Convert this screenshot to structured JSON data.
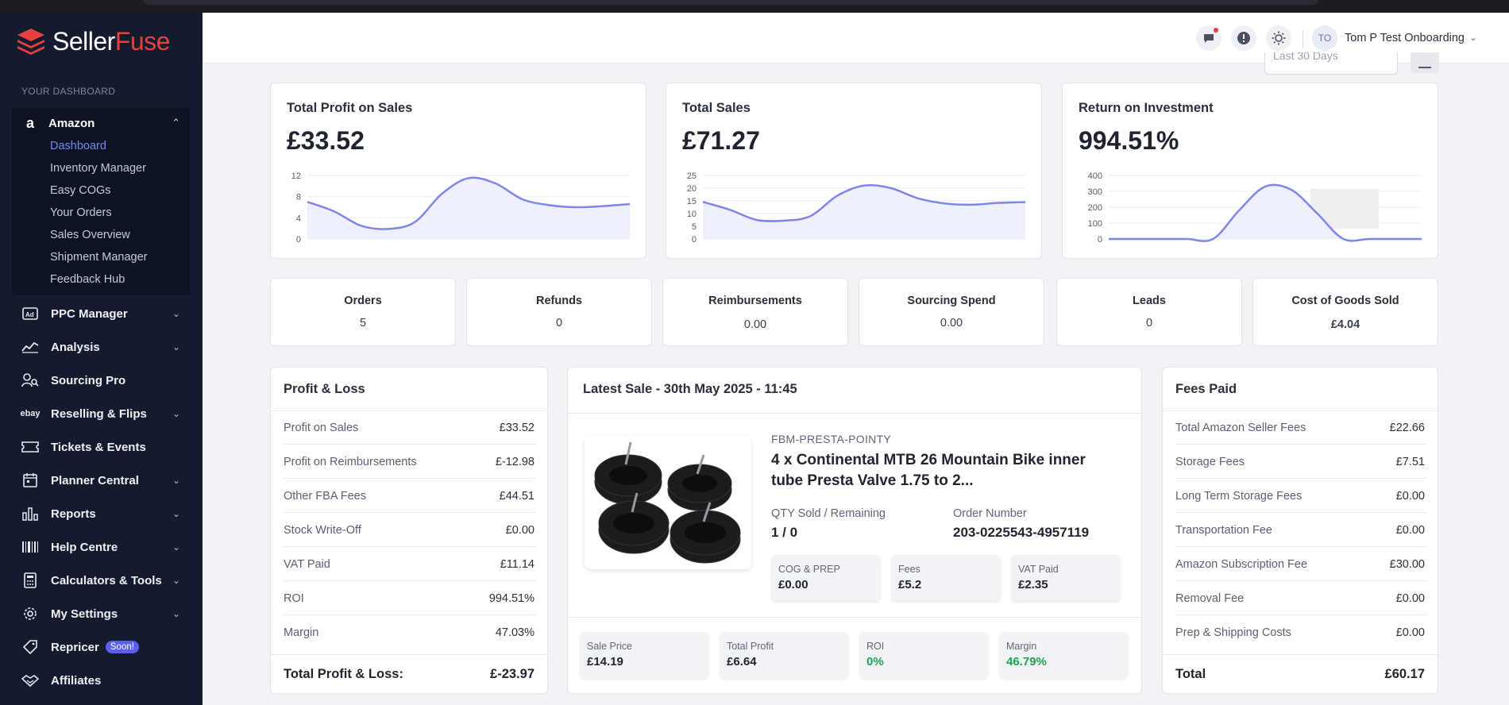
{
  "brand": {
    "name_a": "Seller",
    "name_b": "Fuse"
  },
  "sidebar": {
    "section_label": "YOUR DASHBOARD",
    "amazon": {
      "label": "Amazon",
      "items": [
        "Dashboard",
        "Inventory Manager",
        "Easy COGs",
        "Your Orders",
        "Sales Overview",
        "Shipment Manager",
        "Feedback Hub"
      ]
    },
    "nav": [
      {
        "label": "PPC Manager",
        "icon": "ad-icon",
        "expandable": true
      },
      {
        "label": "Analysis",
        "icon": "trend-icon",
        "expandable": true
      },
      {
        "label": "Sourcing Pro",
        "icon": "users-search-icon",
        "expandable": false
      },
      {
        "label": "Reselling & Flips",
        "icon": "ebay-icon",
        "expandable": true,
        "icon_text": "ebay"
      },
      {
        "label": "Tickets & Events",
        "icon": "ticket-icon",
        "expandable": false
      },
      {
        "label": "Planner Central",
        "icon": "calendar-icon",
        "expandable": true
      },
      {
        "label": "Reports",
        "icon": "bar-chart-icon",
        "expandable": true
      },
      {
        "label": "Help Centre",
        "icon": "barcode-icon",
        "expandable": true
      },
      {
        "label": "Calculators & Tools",
        "icon": "calculator-icon",
        "expandable": true
      },
      {
        "label": "My Settings",
        "icon": "gear-icon",
        "expandable": true
      },
      {
        "label": "Repricer",
        "icon": "tag-icon",
        "expandable": false,
        "badge": "Soon!"
      },
      {
        "label": "Affiliates",
        "icon": "handshake-icon",
        "expandable": false
      }
    ]
  },
  "header": {
    "user_initials": "TO",
    "user_name": "Tom P Test Onboarding",
    "period": "Last 30 Days"
  },
  "charts": {
    "profit": {
      "title": "Total Profit on Sales",
      "value": "£33.52",
      "chart_data": {
        "type": "area",
        "y_ticks": [
          0,
          4,
          8,
          12
        ],
        "ylim": [
          0,
          12
        ],
        "values": [
          7.0,
          5.2,
          2.5,
          1.9,
          3.2,
          8.5,
          11.5,
          10.5,
          7.5,
          6.4,
          6.0,
          6.2,
          6.6
        ]
      }
    },
    "sales": {
      "title": "Total Sales",
      "value": "£71.27",
      "chart_data": {
        "type": "area",
        "y_ticks": [
          0,
          5,
          10,
          15,
          20,
          25
        ],
        "ylim": [
          0,
          25
        ],
        "values": [
          14.6,
          11.5,
          7.5,
          7.2,
          9.0,
          17.0,
          21.0,
          20.0,
          16.0,
          14.0,
          13.5,
          14.2,
          14.5
        ]
      }
    },
    "roi": {
      "title": "Return on Investment",
      "value": "994.51%",
      "chart_data": {
        "type": "area",
        "y_ticks": [
          0,
          100,
          200,
          300,
          400
        ],
        "ylim": [
          0,
          400
        ],
        "values": [
          0,
          0,
          0,
          0,
          0,
          180,
          330,
          310,
          160,
          0,
          0,
          0,
          0
        ]
      }
    }
  },
  "stats": [
    {
      "label": "Orders",
      "value": "5"
    },
    {
      "label": "Refunds",
      "value": "0"
    },
    {
      "label": "Reimbursements",
      "value": "0.00"
    },
    {
      "label": "Sourcing Spend",
      "value": "0.00"
    },
    {
      "label": "Leads",
      "value": "0"
    },
    {
      "label": "Cost of Goods Sold",
      "value": "£4.04"
    }
  ],
  "pnl": {
    "title": "Profit & Loss",
    "rows": [
      {
        "label": "Profit on Sales",
        "value": "£33.52"
      },
      {
        "label": "Profit on Reimbursements",
        "value": "£-12.98"
      },
      {
        "label": "Other FBA Fees",
        "value": "£44.51"
      },
      {
        "label": "Stock Write-Off",
        "value": "£0.00"
      },
      {
        "label": "VAT Paid",
        "value": "£11.14"
      },
      {
        "label": "ROI",
        "value": "994.51%"
      },
      {
        "label": "Margin",
        "value": "47.03%"
      }
    ],
    "total_label": "Total Profit & Loss:",
    "total_value": "£-23.97"
  },
  "latest_sale": {
    "title": "Latest Sale - 30th May 2025 - 11:45",
    "sku": "FBM-PRESTA-POINTY",
    "product": "4 x Continental MTB 26 Mountain Bike inner tube Presta Valve 1.75 to 2...",
    "qty_label": "QTY Sold / Remaining",
    "qty_value": "1 / 0",
    "order_label": "Order Number",
    "order_value": "203-0225543-4957119",
    "cog_label": "COG & PREP",
    "cog_value": "£0.00",
    "fees_label": "Fees",
    "fees_value": "£5.2",
    "vat_label": "VAT Paid",
    "vat_value": "£2.35",
    "sale_price_label": "Sale Price",
    "sale_price_value": "£14.19",
    "total_profit_label": "Total Profit",
    "total_profit_value": "£6.64",
    "roi_label": "ROI",
    "roi_value": "0%",
    "margin_label": "Margin",
    "margin_value": "46.79%"
  },
  "fees": {
    "title": "Fees Paid",
    "rows": [
      {
        "label": "Total Amazon Seller Fees",
        "value": "£22.66"
      },
      {
        "label": "Storage Fees",
        "value": "£7.51"
      },
      {
        "label": "Long Term Storage Fees",
        "value": "£0.00"
      },
      {
        "label": "Transportation Fee",
        "value": "£0.00"
      },
      {
        "label": "Amazon Subscription Fee",
        "value": "£30.00"
      },
      {
        "label": "Removal Fee",
        "value": "£0.00"
      },
      {
        "label": "Prep & Shipping Costs",
        "value": "£0.00"
      }
    ],
    "total_label": "Total",
    "total_value": "£60.17"
  },
  "colors": {
    "accent": "#7b83ff",
    "sidebar": "#141b2e",
    "brand_red": "#e8413d",
    "chart_line": "#7f86ea",
    "chart_fill": "#eef0fd",
    "positive": "#1ea44f"
  }
}
